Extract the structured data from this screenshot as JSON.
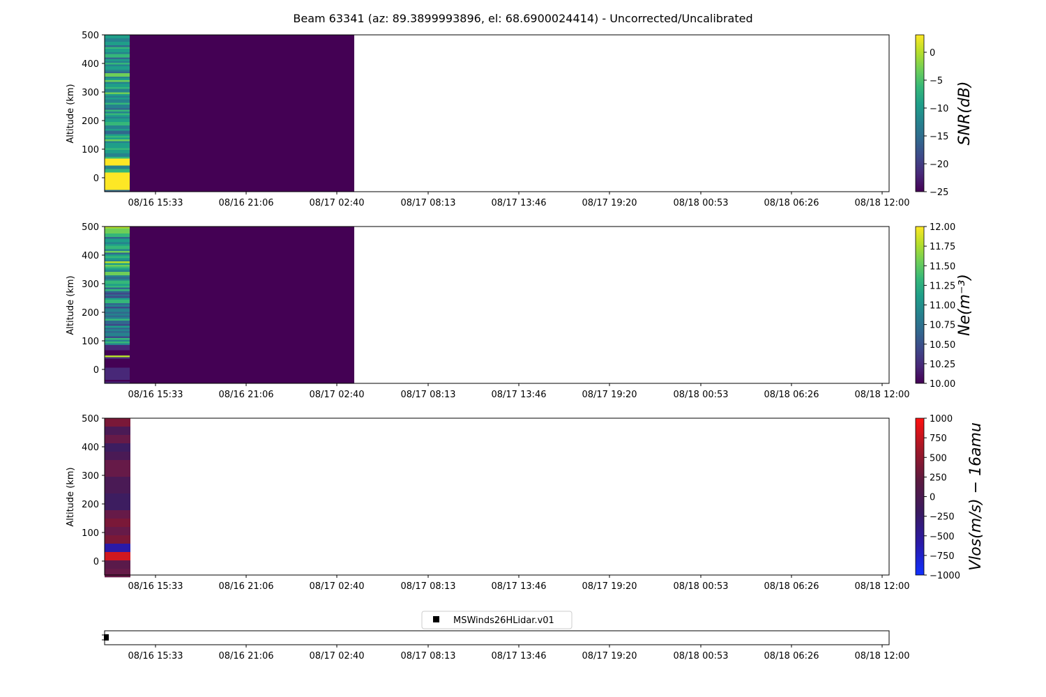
{
  "title": "Beam 63341 (az: 89.3899993896, el: 68.6900024414) - Uncorrected/Uncalibrated",
  "x_ticks": [
    "08/16 15:33",
    "08/16 21:06",
    "08/17 02:40",
    "08/17 08:13",
    "08/17 13:46",
    "08/17 19:20",
    "08/18 00:53",
    "08/18 06:26",
    "08/18 12:00"
  ],
  "chart_data": [
    {
      "type": "heatmap",
      "ylabel": "Altitude (km)",
      "y_ticks": [
        "500",
        "400",
        "300",
        "200",
        "100",
        "0"
      ],
      "colorbar_label": "SNR(dB)",
      "colorbar_ticks": [
        "0",
        "−5",
        "−10",
        "−15",
        "−20",
        "−25"
      ],
      "colormap": "viridis",
      "ylim": [
        -50,
        500
      ],
      "clim": [
        -25,
        3
      ]
    },
    {
      "type": "heatmap",
      "ylabel": "Altitude (km)",
      "y_ticks": [
        "500",
        "400",
        "300",
        "200",
        "100",
        "0"
      ],
      "colorbar_label": "Ne(m⁻³)",
      "colorbar_ticks": [
        "12.00",
        "11.75",
        "11.50",
        "11.25",
        "11.00",
        "10.75",
        "10.50",
        "10.25",
        "10.00"
      ],
      "colormap": "viridis",
      "ylim": [
        -50,
        500
      ],
      "clim": [
        10,
        12
      ]
    },
    {
      "type": "heatmap",
      "ylabel": "Altitude (km)",
      "y_ticks": [
        "500",
        "400",
        "300",
        "200",
        "100",
        "0"
      ],
      "colorbar_label": "Vlos(m/s) − 16amu",
      "colorbar_ticks": [
        "1000",
        "750",
        "500",
        "250",
        "0",
        "−250",
        "−500",
        "−750",
        "−1000"
      ],
      "colormap": "bwr-dark",
      "ylim": [
        -50,
        500
      ],
      "clim": [
        -1000,
        1000
      ]
    },
    {
      "type": "scatter",
      "legend": [
        "MSWinds26HLidar.v01"
      ]
    }
  ]
}
